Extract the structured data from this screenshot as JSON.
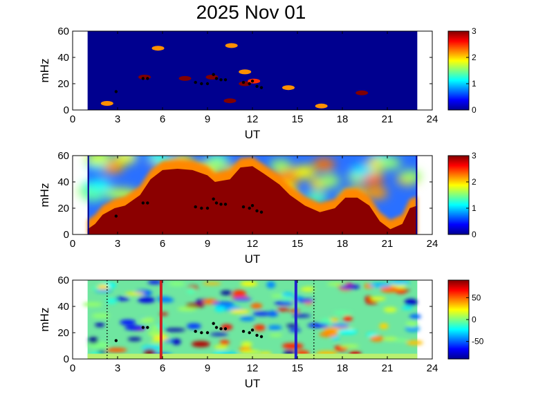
{
  "title": "2025 Nov 01",
  "colors": {
    "background_low": "#00008f",
    "marker": "#000000",
    "red_line": "#cc2222",
    "blue_line": "#2222cc"
  },
  "chart_data": [
    {
      "type": "heatmap",
      "panel": "top",
      "xlabel": "UT",
      "ylabel": "mHz",
      "xlim": [
        0,
        24
      ],
      "ylim": [
        0,
        60
      ],
      "x_ticks": [
        "0",
        "3",
        "6",
        "9",
        "12",
        "15",
        "18",
        "21",
        "24"
      ],
      "y_ticks": [
        "0",
        "20",
        "40",
        "60"
      ],
      "data_x_range": [
        1,
        23
      ],
      "colorbar": {
        "min": 0,
        "max": 3,
        "ticks": [
          "0",
          "1",
          "2",
          "3"
        ]
      },
      "features": [
        {
          "x": 2.3,
          "y": 5,
          "value": 2.2
        },
        {
          "x": 4.8,
          "y": 25,
          "value": 3
        },
        {
          "x": 7.5,
          "y": 24,
          "value": 3
        },
        {
          "x": 9.3,
          "y": 25,
          "value": 3
        },
        {
          "x": 10.5,
          "y": 7,
          "value": 3
        },
        {
          "x": 11.5,
          "y": 20,
          "value": 3
        },
        {
          "x": 11.5,
          "y": 29,
          "value": 2.2
        },
        {
          "x": 12.1,
          "y": 22,
          "value": 2.5
        },
        {
          "x": 14.4,
          "y": 17,
          "value": 2.2
        },
        {
          "x": 16.6,
          "y": 3,
          "value": 2.2
        },
        {
          "x": 19.3,
          "y": 13,
          "value": 3
        },
        {
          "x": 5.7,
          "y": 47,
          "value": 2.2
        },
        {
          "x": 10.6,
          "y": 49,
          "value": 2.2
        }
      ],
      "markers": [
        {
          "x": 2.9,
          "y": 14
        },
        {
          "x": 4.7,
          "y": 24
        },
        {
          "x": 5.0,
          "y": 24
        },
        {
          "x": 8.2,
          "y": 21
        },
        {
          "x": 8.6,
          "y": 20
        },
        {
          "x": 9.0,
          "y": 20
        },
        {
          "x": 9.4,
          "y": 27
        },
        {
          "x": 9.6,
          "y": 24
        },
        {
          "x": 9.9,
          "y": 23
        },
        {
          "x": 10.2,
          "y": 23
        },
        {
          "x": 11.4,
          "y": 21
        },
        {
          "x": 11.8,
          "y": 20
        },
        {
          "x": 12.0,
          "y": 22
        },
        {
          "x": 12.3,
          "y": 18
        },
        {
          "x": 12.6,
          "y": 17
        }
      ]
    },
    {
      "type": "heatmap",
      "panel": "middle",
      "xlabel": "UT",
      "ylabel": "mHz",
      "xlim": [
        0,
        24
      ],
      "ylim": [
        0,
        60
      ],
      "x_ticks": [
        "0",
        "3",
        "6",
        "9",
        "12",
        "15",
        "18",
        "21",
        "24"
      ],
      "y_ticks": [
        "0",
        "20",
        "40",
        "60"
      ],
      "data_x_range": [
        1,
        23
      ],
      "colorbar": {
        "min": 0,
        "max": 3,
        "ticks": [
          "0",
          "1",
          "2",
          "3"
        ]
      },
      "saturated_envelope": [
        [
          1.0,
          4
        ],
        [
          1.5,
          8
        ],
        [
          2.0,
          15
        ],
        [
          2.8,
          20
        ],
        [
          3.5,
          22
        ],
        [
          4.5,
          30
        ],
        [
          5.2,
          42
        ],
        [
          6.0,
          49
        ],
        [
          7.0,
          50
        ],
        [
          8.0,
          49
        ],
        [
          9.0,
          45
        ],
        [
          9.5,
          40
        ],
        [
          10.5,
          42
        ],
        [
          11.2,
          51
        ],
        [
          12.0,
          52
        ],
        [
          12.8,
          46
        ],
        [
          13.8,
          38
        ],
        [
          14.5,
          30
        ],
        [
          15.5,
          22
        ],
        [
          16.5,
          17
        ],
        [
          17.5,
          20
        ],
        [
          18.2,
          28
        ],
        [
          19.0,
          28
        ],
        [
          19.8,
          22
        ],
        [
          20.5,
          10
        ],
        [
          21.2,
          4
        ],
        [
          22.0,
          8
        ],
        [
          22.5,
          20
        ],
        [
          23.0,
          22
        ]
      ],
      "markers": [
        {
          "x": 2.9,
          "y": 14
        },
        {
          "x": 4.7,
          "y": 24
        },
        {
          "x": 5.0,
          "y": 24
        },
        {
          "x": 8.2,
          "y": 21
        },
        {
          "x": 8.6,
          "y": 20
        },
        {
          "x": 9.0,
          "y": 20
        },
        {
          "x": 9.4,
          "y": 27
        },
        {
          "x": 9.6,
          "y": 24
        },
        {
          "x": 9.9,
          "y": 23
        },
        {
          "x": 10.2,
          "y": 23
        },
        {
          "x": 11.4,
          "y": 21
        },
        {
          "x": 11.8,
          "y": 20
        },
        {
          "x": 12.0,
          "y": 22
        },
        {
          "x": 12.3,
          "y": 18
        },
        {
          "x": 12.6,
          "y": 17
        }
      ]
    },
    {
      "type": "heatmap",
      "panel": "bottom",
      "xlabel": "UT",
      "ylabel": "mHz",
      "xlim": [
        0,
        24
      ],
      "ylim": [
        0,
        60
      ],
      "x_ticks": [
        "0",
        "3",
        "6",
        "9",
        "12",
        "15",
        "18",
        "21",
        "24"
      ],
      "y_ticks": [
        "0",
        "20",
        "40",
        "60"
      ],
      "data_x_range": [
        1,
        23
      ],
      "colorbar": {
        "min": -90,
        "max": 90,
        "ticks": [
          "50",
          "0",
          "-50"
        ],
        "tick_values": [
          50,
          0,
          -50
        ]
      },
      "vertical_lines": [
        {
          "x": 5.9,
          "style": "solid",
          "color": "red"
        },
        {
          "x": 14.9,
          "style": "solid",
          "color": "blue"
        },
        {
          "x": 2.3,
          "style": "dotted",
          "color": "black"
        },
        {
          "x": 16.1,
          "style": "dotted",
          "color": "black"
        }
      ],
      "markers": [
        {
          "x": 2.9,
          "y": 14
        },
        {
          "x": 4.7,
          "y": 24
        },
        {
          "x": 5.0,
          "y": 24
        },
        {
          "x": 8.2,
          "y": 21
        },
        {
          "x": 8.6,
          "y": 20
        },
        {
          "x": 9.0,
          "y": 20
        },
        {
          "x": 9.4,
          "y": 27
        },
        {
          "x": 9.6,
          "y": 24
        },
        {
          "x": 9.9,
          "y": 23
        },
        {
          "x": 10.2,
          "y": 23
        },
        {
          "x": 11.4,
          "y": 21
        },
        {
          "x": 11.8,
          "y": 20
        },
        {
          "x": 12.0,
          "y": 22
        },
        {
          "x": 12.3,
          "y": 18
        },
        {
          "x": 12.6,
          "y": 17
        }
      ]
    }
  ]
}
